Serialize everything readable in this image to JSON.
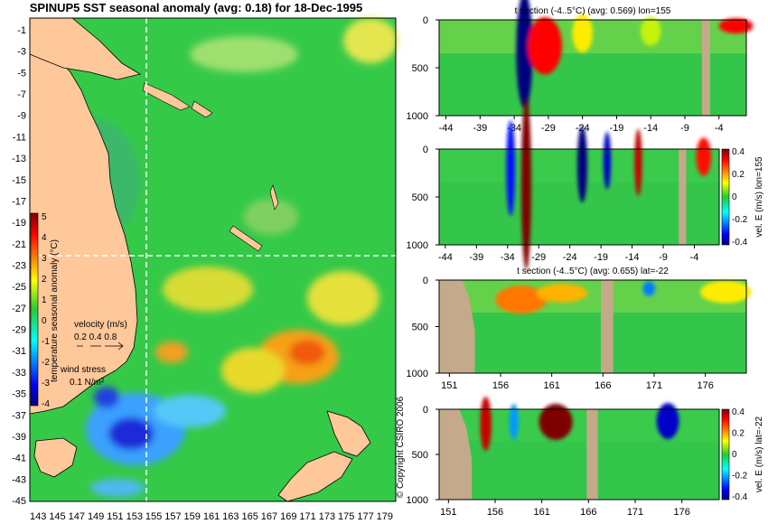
{
  "map": {
    "title": "SPINUP5 SST seasonal anomaly (avg: 0.18) for 18-Dec-1995",
    "lat_ticks": [
      "-1",
      "-3",
      "-5",
      "-7",
      "-9",
      "-11",
      "-13",
      "-15",
      "-17",
      "-19",
      "-21",
      "-23",
      "-25",
      "-27",
      "-29",
      "-31",
      "-33",
      "-35",
      "-37",
      "-39",
      "-41",
      "-43",
      "-45"
    ],
    "lon_ticks": [
      "143",
      "145",
      "147",
      "149",
      "151",
      "153",
      "155",
      "157",
      "159",
      "161",
      "163",
      "165",
      "167",
      "169",
      "171",
      "173",
      "175",
      "177",
      "179"
    ],
    "colorbar": {
      "label": "temperature seasonal anomaly (°C)",
      "ticks": [
        "5",
        "4",
        "3",
        "2",
        "1",
        "0",
        "-1",
        "-2",
        "-3",
        "-4"
      ]
    },
    "velocity_legend": {
      "title": "velocity (m/s)",
      "values": "0.2 0.4 0.8"
    },
    "wind_legend": {
      "title": "wind stress",
      "value": "0.1 N/m²"
    },
    "section_lon_marker": 155,
    "section_lat_marker": -22
  },
  "copyright": "© Copyright CSIRO 2006",
  "chart_data": [
    {
      "type": "heatmap",
      "id": "panel1",
      "title": "t section (-4..5°C) (avg: 0.569) lon=155",
      "x_ticks": [
        "-44",
        "-39",
        "-34",
        "-29",
        "-24",
        "-19",
        "-14",
        "-9",
        "-4"
      ],
      "y_ticks": [
        "0",
        "500",
        "1000"
      ],
      "xlim": [
        -45,
        0
      ],
      "ylim": [
        0,
        1000
      ],
      "land": [
        [
          -6.5,
          -5.3
        ]
      ],
      "blobs": [
        {
          "x": -32.5,
          "y": 80,
          "rx": 1.2,
          "ry": 600,
          "value": -4
        },
        {
          "x": -29.5,
          "y": 150,
          "rx": 2.5,
          "ry": 300,
          "value": 4
        },
        {
          "x": -1.5,
          "y": 30,
          "rx": 2.5,
          "ry": 80,
          "value": 4
        },
        {
          "x": -24,
          "y": 60,
          "rx": 1.5,
          "ry": 200,
          "value": 2
        },
        {
          "x": -14,
          "y": 60,
          "rx": 1.5,
          "ry": 150,
          "value": 1.5
        }
      ]
    },
    {
      "type": "heatmap",
      "id": "panel2",
      "title": "",
      "x_ticks": [
        "-44",
        "-39",
        "-34",
        "-29",
        "-24",
        "-19",
        "-14",
        "-9",
        "-4"
      ],
      "y_ticks": [
        "0",
        "500",
        "1000"
      ],
      "xlim": [
        -45,
        0
      ],
      "ylim": [
        0,
        1000
      ],
      "land": [
        [
          -6.5,
          -5.3
        ]
      ],
      "colorbar": {
        "label": "vel. E (m/s) lon=155",
        "ticks": [
          "0.4",
          "0.2",
          "0",
          "-0.2",
          "-0.4"
        ],
        "range": [
          -0.4,
          0.4
        ]
      },
      "blobs": [
        {
          "x": -31,
          "y": 0,
          "rx": 0.8,
          "ry": 900,
          "value": 0.4
        },
        {
          "x": -33.5,
          "y": 0,
          "rx": 0.7,
          "ry": 500,
          "value": -0.3
        },
        {
          "x": -22,
          "y": 0,
          "rx": 0.8,
          "ry": 400,
          "value": -0.4
        },
        {
          "x": -18,
          "y": 0,
          "rx": 0.6,
          "ry": 300,
          "value": -0.35
        },
        {
          "x": -13,
          "y": 0,
          "rx": 0.6,
          "ry": 350,
          "value": 0.35
        },
        {
          "x": -2.5,
          "y": 0,
          "rx": 1.2,
          "ry": 200,
          "value": 0.3
        }
      ]
    },
    {
      "type": "heatmap",
      "id": "panel3",
      "title": "t section (-4..5°C) (avg: 0.655) lat=-22",
      "x_ticks": [
        "151",
        "156",
        "161",
        "166",
        "171",
        "176"
      ],
      "y_ticks": [
        "0",
        "500",
        "1000"
      ],
      "xlim": [
        150,
        180
      ],
      "ylim": [
        0,
        1000
      ],
      "land": [
        [
          165.8,
          167
        ]
      ],
      "coast_x": 153.5,
      "blobs": [
        {
          "x": 158,
          "y": 150,
          "rx": 2.5,
          "ry": 150,
          "value": 3
        },
        {
          "x": 162,
          "y": 100,
          "rx": 2.5,
          "ry": 100,
          "value": 2.5
        },
        {
          "x": 170.5,
          "y": 60,
          "rx": 0.6,
          "ry": 80,
          "value": -2
        },
        {
          "x": 178,
          "y": 80,
          "rx": 2.5,
          "ry": 120,
          "value": 2
        }
      ]
    },
    {
      "type": "heatmap",
      "id": "panel4",
      "title": "",
      "x_ticks": [
        "151",
        "156",
        "161",
        "166",
        "171",
        "176"
      ],
      "y_ticks": [
        "0",
        "500",
        "1000"
      ],
      "xlim": [
        150,
        180
      ],
      "ylim": [
        0,
        1000
      ],
      "land": [
        [
          165.8,
          167
        ]
      ],
      "coast_x": 153.5,
      "colorbar": {
        "label": "vel. E (m/s) lat=-22",
        "ticks": [
          "0.4",
          "0.2",
          "0",
          "-0.2",
          "-0.4"
        ],
        "range": [
          -0.4,
          0.4
        ]
      },
      "blobs": [
        {
          "x": 162.5,
          "y": 60,
          "rx": 1.8,
          "ry": 200,
          "value": 0.45
        },
        {
          "x": 155,
          "y": 40,
          "rx": 0.6,
          "ry": 300,
          "value": 0.35
        },
        {
          "x": 174.5,
          "y": 50,
          "rx": 1.2,
          "ry": 200,
          "value": -0.35
        },
        {
          "x": 158,
          "y": 60,
          "rx": 0.5,
          "ry": 200,
          "value": -0.2
        }
      ]
    }
  ]
}
